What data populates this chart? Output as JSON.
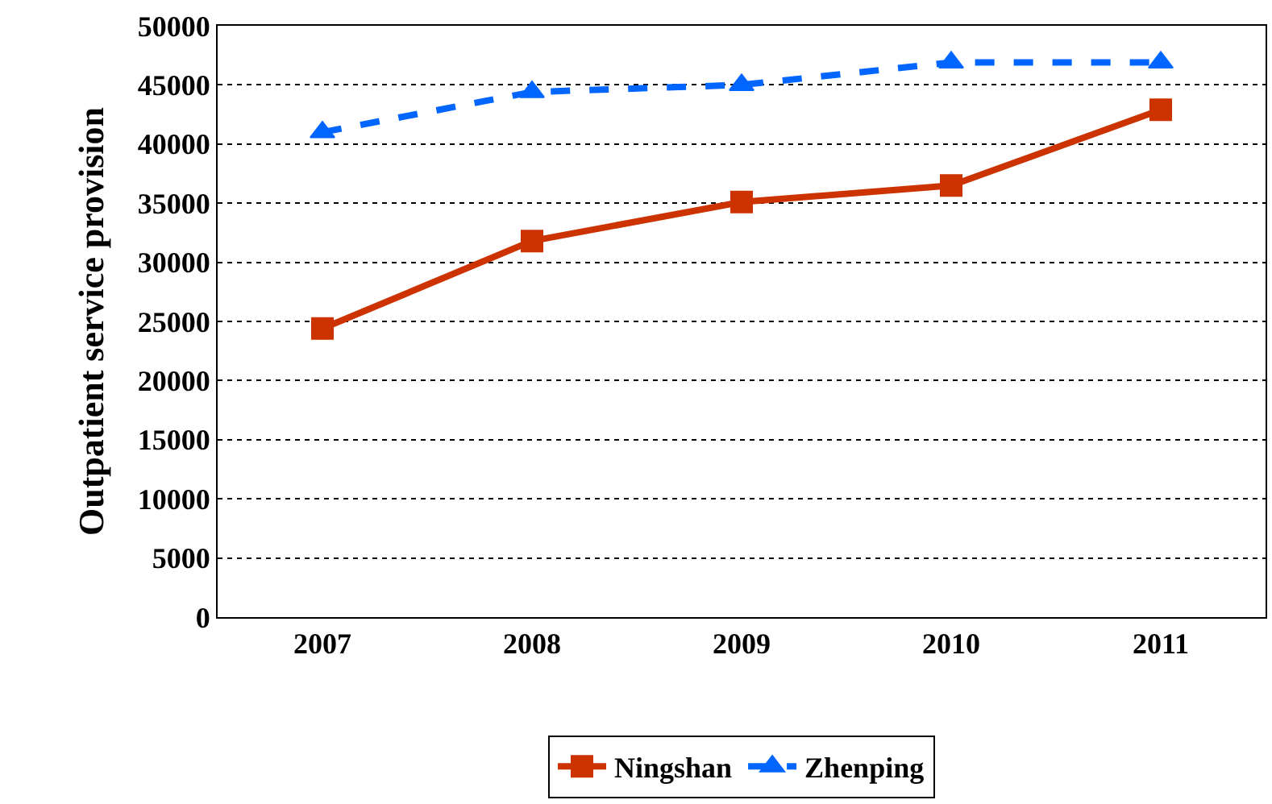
{
  "chart_data": {
    "type": "line",
    "ylabel": "Outpatient service provision",
    "categories": [
      "2007",
      "2008",
      "2009",
      "2010",
      "2011"
    ],
    "series": [
      {
        "name": "Ningshan",
        "color": "#cc3300",
        "values": [
          24400,
          31800,
          35100,
          36500,
          42900
        ],
        "marker": "square",
        "line_style": "solid"
      },
      {
        "name": "Zhenping",
        "color": "#0066ff",
        "values": [
          41000,
          44400,
          45000,
          46900,
          46900
        ],
        "marker": "triangle",
        "line_style": "dashed"
      }
    ],
    "ylim": [
      0,
      50000
    ],
    "yticks": [
      0,
      5000,
      10000,
      15000,
      20000,
      25000,
      30000,
      35000,
      40000,
      45000,
      50000
    ],
    "grid": "y",
    "legend": "bottom"
  }
}
